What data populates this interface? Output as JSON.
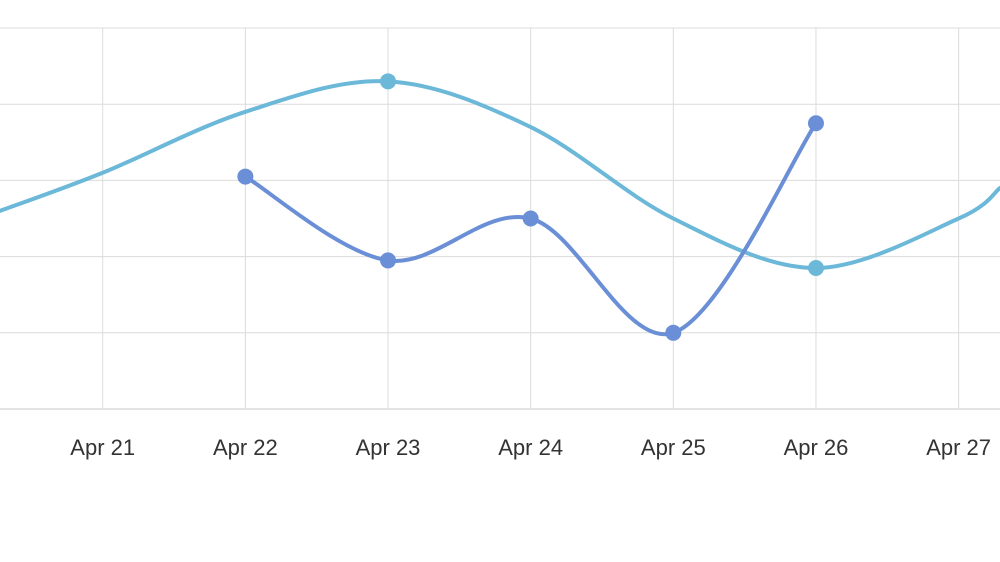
{
  "chart_data": {
    "type": "line",
    "title": "",
    "xlabel": "",
    "ylabel": "",
    "categories": [
      "Apr 21",
      "Apr 22",
      "Apr 23",
      "Apr 24",
      "Apr 25",
      "Apr 26",
      "Apr 27"
    ],
    "x_range": [
      "Apr 20.28",
      "Apr 27.29"
    ],
    "ylim": [
      0,
      5
    ],
    "grid": true,
    "legend": "none",
    "smooth": true,
    "series": [
      {
        "color": "#6bb8d9",
        "x": [
          20.28,
          21,
          22,
          23,
          24,
          25,
          26,
          27,
          27.29
        ],
        "values": [
          2.6,
          3.1,
          3.9,
          4.3,
          3.7,
          2.5,
          1.85,
          2.5,
          2.9
        ],
        "markers": [
          23,
          26
        ]
      },
      {
        "color": "#6a8fd6",
        "x": [
          22,
          23,
          24,
          25,
          26
        ],
        "values": [
          3.05,
          1.95,
          2.5,
          1.0,
          3.75
        ],
        "markers": [
          22,
          23,
          24,
          25,
          26
        ]
      }
    ]
  }
}
